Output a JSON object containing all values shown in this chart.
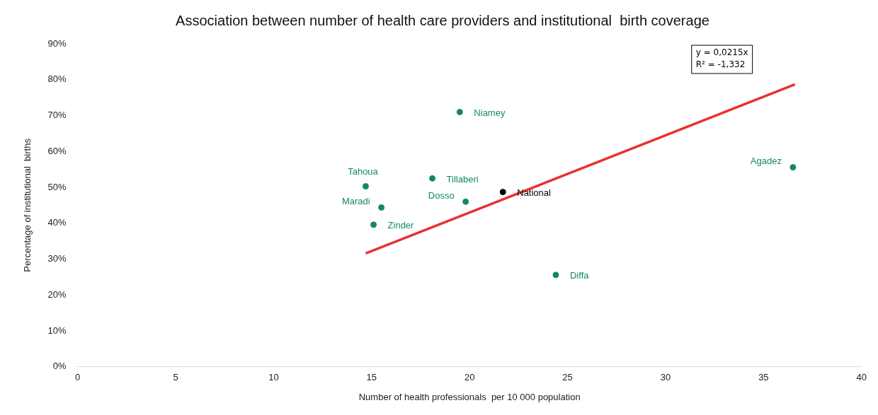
{
  "chart_data": {
    "type": "scatter",
    "title": "Association between number of health care providers and institutional  birth coverage",
    "xlabel": "Number of health professionals  per 10 000 population",
    "ylabel": "Percentage of institutional  births",
    "series": [
      {
        "type": "scatter",
        "marker": "circle",
        "x": [
          19.5,
          14.7,
          18.1,
          15.5,
          19.8,
          21.7,
          15.1,
          24.4,
          36.5
        ],
        "values": [
          71.0,
          50.3,
          52.5,
          44.4,
          46.0,
          48.7,
          39.6,
          25.6,
          55.6
        ],
        "colors": [
          "#138a5e",
          "#138a5e",
          "#138a5e",
          "#138a5e",
          "#138a5e",
          "#000000",
          "#138a5e",
          "#138a5e",
          "#138a5e"
        ]
      },
      {
        "type": "line",
        "x": [
          14.7,
          36.6
        ],
        "values": [
          31.6,
          78.7
        ],
        "color": "#e8312f"
      }
    ],
    "xlim": [
      0,
      40
    ],
    "xticks": [
      0,
      5,
      10,
      15,
      20,
      25,
      30,
      35,
      40
    ],
    "ylim": [
      0,
      90
    ],
    "yticks": [
      {
        "value": 0,
        "label": "0%"
      },
      {
        "value": 10,
        "label": "10%"
      },
      {
        "value": 20,
        "label": "20%"
      },
      {
        "value": 30,
        "label": "30%"
      },
      {
        "value": 40,
        "label": "40%"
      },
      {
        "value": 50,
        "label": "50%"
      },
      {
        "value": 60,
        "label": "60%"
      },
      {
        "value": 70,
        "label": "70%"
      },
      {
        "value": 80,
        "label": "80%"
      },
      {
        "value": 90,
        "label": "90%"
      }
    ],
    "grid": false,
    "legend": false,
    "annotations": [
      "y = 0,0215x",
      "R² = -1,332",
      {
        "text": "Niamey",
        "x": 19.5,
        "y": 71.0
      },
      {
        "text": "Tahoua",
        "x": 14.7,
        "y": 50.3
      },
      {
        "text": "Tillaberi",
        "x": 18.1,
        "y": 52.5
      },
      {
        "text": "Maradi",
        "x": 15.5,
        "y": 44.4
      },
      {
        "text": "Dosso",
        "x": 19.8,
        "y": 46.0
      },
      {
        "text": "National",
        "x": 21.7,
        "y": 48.7
      },
      {
        "text": "Zinder",
        "x": 15.1,
        "y": 39.6
      },
      {
        "text": "Diffa",
        "x": 24.4,
        "y": 25.6
      },
      {
        "text": "Agadez",
        "x": 36.5,
        "y": 55.6
      }
    ]
  }
}
